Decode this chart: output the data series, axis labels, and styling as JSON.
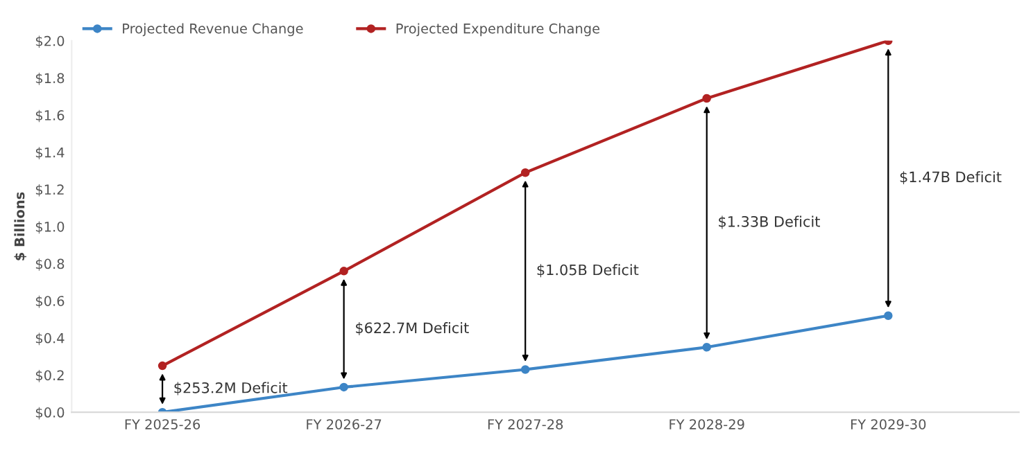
{
  "chart_data": {
    "type": "line",
    "ylabel": "$ Billions",
    "categories": [
      "FY 2025-26",
      "FY 2026-27",
      "FY 2027-28",
      "FY 2028-29",
      "FY 2029-30"
    ],
    "series": [
      {
        "name": "Projected Revenue Change",
        "color": "#3d85c6",
        "values": [
          0.0,
          0.135,
          0.23,
          0.35,
          0.52
        ]
      },
      {
        "name": "Projected Expenditure Change",
        "color": "#b22222",
        "values": [
          0.25,
          0.76,
          1.29,
          1.69,
          2.0
        ]
      }
    ],
    "ylim": [
      0,
      2.0
    ],
    "yticks": [
      {
        "value": 0,
        "label": "$0.0"
      },
      {
        "value": 0.2,
        "label": "$0.2"
      },
      {
        "value": 0.4,
        "label": "$0.4"
      },
      {
        "value": 0.6,
        "label": "$0.6"
      },
      {
        "value": 0.8,
        "label": "$0.8"
      },
      {
        "value": 1.0,
        "label": "$1.0"
      },
      {
        "value": 1.2,
        "label": "$1.2"
      },
      {
        "value": 1.4,
        "label": "$1.4"
      },
      {
        "value": 1.6,
        "label": "$1.6"
      },
      {
        "value": 1.8,
        "label": "$1.8"
      },
      {
        "value": 2.0,
        "label": "$2.0"
      }
    ],
    "annotations": [
      "$253.2M Deficit",
      "$622.7M Deficit",
      "$1.05B Deficit",
      "$1.33B Deficit",
      "$1.47B Deficit"
    ],
    "grid": false,
    "legend": "top left",
    "marker": "circle",
    "line_style": "solid"
  }
}
